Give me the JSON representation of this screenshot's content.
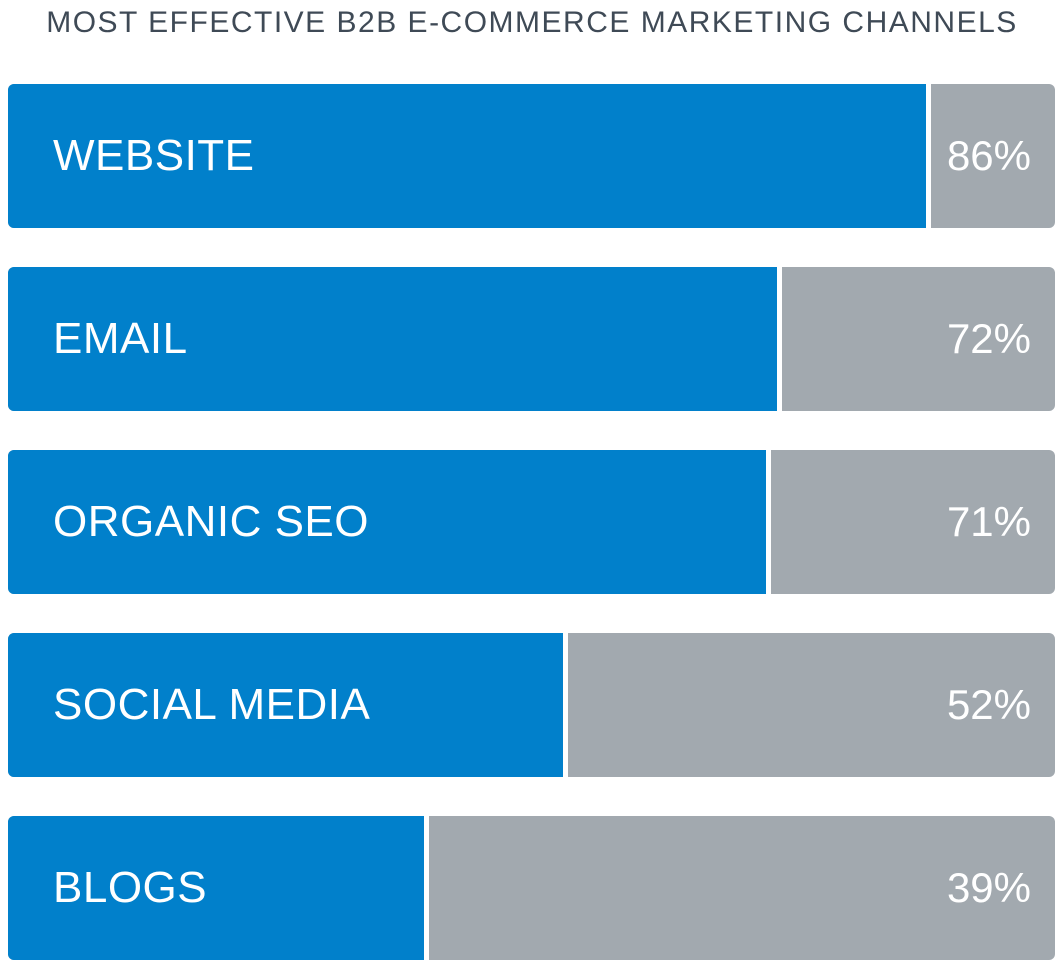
{
  "chart_data": {
    "type": "bar",
    "orientation": "horizontal",
    "title": "MOST EFFECTIVE B2B E-COMMERCE MARKETING CHANNELS",
    "categories": [
      "WEBSITE",
      "EMAIL",
      "ORGANIC SEO",
      "SOCIAL MEDIA",
      "BLOGS"
    ],
    "values": [
      86,
      72,
      71,
      52,
      39
    ],
    "value_labels": [
      "86%",
      "72%",
      "71%",
      "52%",
      "39%"
    ],
    "xlim": [
      0,
      100
    ],
    "grid": false,
    "legend": "none",
    "colors": {
      "bar": "#0180cb",
      "track": "#a2a9af",
      "title": "#3f4a56",
      "label": "#ffffff"
    }
  }
}
